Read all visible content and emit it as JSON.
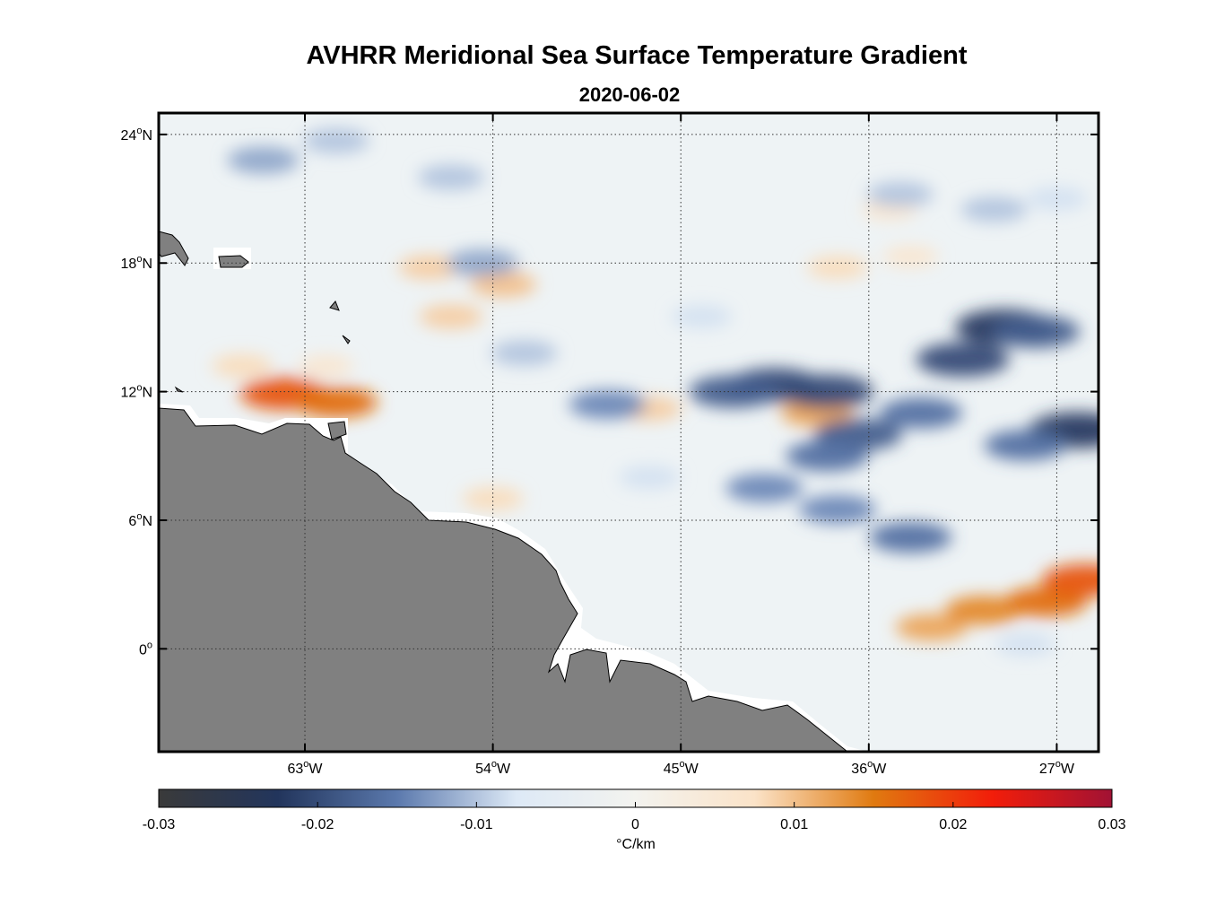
{
  "chart_data": {
    "type": "heatmap",
    "title": "AVHRR Meridional Sea Surface Temperature Gradient",
    "subtitle": "2020-06-02",
    "x_ticks": [
      {
        "value": -63,
        "label": "63°W"
      },
      {
        "value": -54,
        "label": "54°W"
      },
      {
        "value": -45,
        "label": "45°W"
      },
      {
        "value": -36,
        "label": "36°W"
      },
      {
        "value": -27,
        "label": "27°W"
      }
    ],
    "y_ticks": [
      {
        "value": 24,
        "label": "24°N"
      },
      {
        "value": 18,
        "label": "18°N"
      },
      {
        "value": 12,
        "label": "12°N"
      },
      {
        "value": 6,
        "label": "6°N"
      },
      {
        "value": 0,
        "label": "0°"
      }
    ],
    "xlim": [
      -70,
      -25
    ],
    "ylim": [
      -4.8,
      25
    ],
    "grid": true,
    "colormap": {
      "range": [
        -0.03,
        0.03
      ],
      "stops": [
        "#3a3a3a",
        "#22355c",
        "#5b79ad",
        "#dde9f6",
        "#f3f3ef",
        "#fbe3c8",
        "#e07a10",
        "#f21d0a",
        "#a11234"
      ],
      "ticks": [
        {
          "value": -0.03,
          "label": "-0.03"
        },
        {
          "value": -0.02,
          "label": "-0.02"
        },
        {
          "value": -0.01,
          "label": "-0.01"
        },
        {
          "value": 0,
          "label": "0"
        },
        {
          "value": 0.01,
          "label": "0.01"
        },
        {
          "value": 0.02,
          "label": "0.02"
        },
        {
          "value": 0.03,
          "label": "0.03"
        }
      ],
      "unit": "°C/km"
    },
    "features": [
      {
        "lon": -64.0,
        "lat": 11.9,
        "value": 0.018
      },
      {
        "lon": -61.5,
        "lat": 11.5,
        "value": 0.016
      },
      {
        "lon": -66.0,
        "lat": 13.2,
        "value": 0.008
      },
      {
        "lon": -62.0,
        "lat": 13.2,
        "value": 0.006
      },
      {
        "lon": -53.5,
        "lat": 17.0,
        "value": 0.01
      },
      {
        "lon": -56.0,
        "lat": 15.5,
        "value": 0.009
      },
      {
        "lon": -57.0,
        "lat": 17.8,
        "value": 0.009
      },
      {
        "lon": -54.0,
        "lat": 7.0,
        "value": 0.008
      },
      {
        "lon": -46.5,
        "lat": 11.2,
        "value": 0.009
      },
      {
        "lon": -38.5,
        "lat": 11.0,
        "value": 0.012
      },
      {
        "lon": -37.5,
        "lat": 17.8,
        "value": 0.008
      },
      {
        "lon": -34.0,
        "lat": 18.3,
        "value": 0.006
      },
      {
        "lon": -35.0,
        "lat": 20.5,
        "value": 0.006
      },
      {
        "lon": -33.0,
        "lat": 1.0,
        "value": 0.012
      },
      {
        "lon": -30.5,
        "lat": 1.8,
        "value": 0.014
      },
      {
        "lon": -27.5,
        "lat": 2.2,
        "value": 0.016
      },
      {
        "lon": -25.6,
        "lat": 3.2,
        "value": 0.018
      },
      {
        "lon": -54.5,
        "lat": 18.0,
        "value": -0.012
      },
      {
        "lon": -48.5,
        "lat": 11.4,
        "value": -0.014
      },
      {
        "lon": -40.5,
        "lat": 12.3,
        "value": -0.02
      },
      {
        "lon": -42.5,
        "lat": 12.0,
        "value": -0.018
      },
      {
        "lon": -38.0,
        "lat": 12.0,
        "value": -0.02
      },
      {
        "lon": -36.5,
        "lat": 10.0,
        "value": -0.018
      },
      {
        "lon": -38.0,
        "lat": 9.0,
        "value": -0.016
      },
      {
        "lon": -41.0,
        "lat": 7.5,
        "value": -0.014
      },
      {
        "lon": -37.5,
        "lat": 6.5,
        "value": -0.014
      },
      {
        "lon": -29.5,
        "lat": 15.0,
        "value": -0.022
      },
      {
        "lon": -31.5,
        "lat": 13.5,
        "value": -0.02
      },
      {
        "lon": -26.0,
        "lat": 10.2,
        "value": -0.022
      },
      {
        "lon": -28.5,
        "lat": 9.5,
        "value": -0.016
      },
      {
        "lon": -33.5,
        "lat": 11.0,
        "value": -0.016
      },
      {
        "lon": -34.0,
        "lat": 5.2,
        "value": -0.016
      },
      {
        "lon": -28.0,
        "lat": 14.8,
        "value": -0.018
      },
      {
        "lon": -65.0,
        "lat": 22.8,
        "value": -0.012
      },
      {
        "lon": -61.5,
        "lat": 23.7,
        "value": -0.01
      },
      {
        "lon": -56.0,
        "lat": 22.0,
        "value": -0.01
      },
      {
        "lon": -34.5,
        "lat": 21.2,
        "value": -0.01
      },
      {
        "lon": -30.0,
        "lat": 20.5,
        "value": -0.01
      },
      {
        "lon": -27.0,
        "lat": 21.0,
        "value": -0.008
      },
      {
        "lon": -52.5,
        "lat": 13.8,
        "value": -0.01
      },
      {
        "lon": -44.0,
        "lat": 15.5,
        "value": -0.008
      },
      {
        "lon": -46.5,
        "lat": 8.0,
        "value": -0.008
      },
      {
        "lon": -28.5,
        "lat": 0.2,
        "value": -0.008
      }
    ]
  }
}
